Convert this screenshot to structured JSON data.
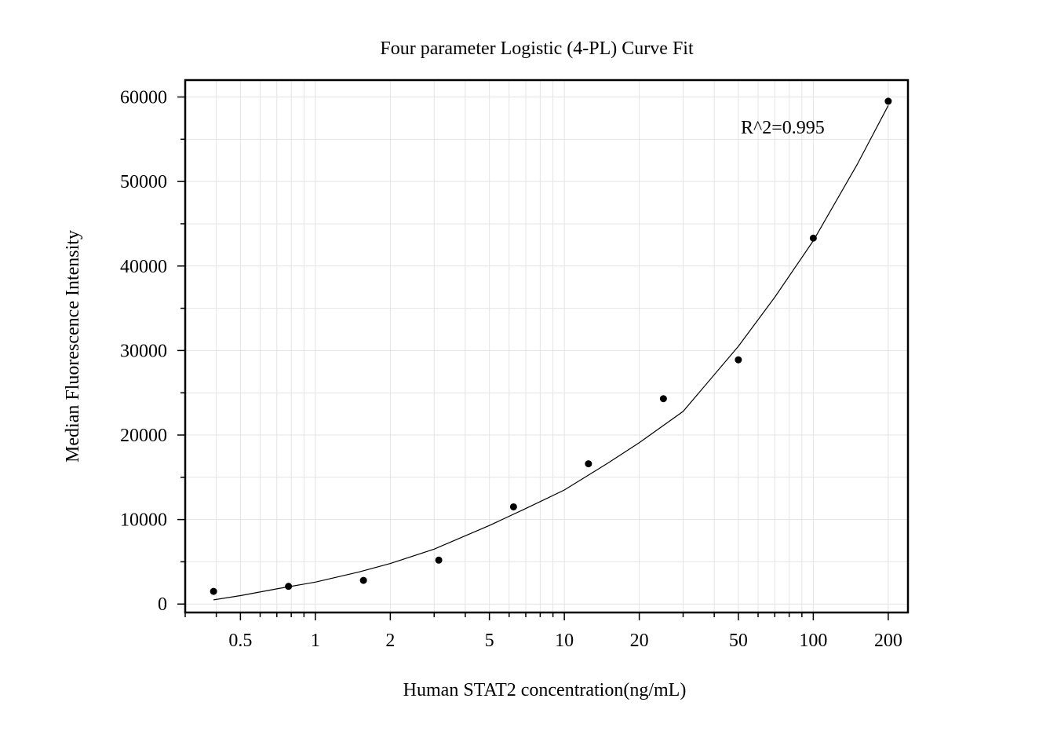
{
  "chart_data": {
    "type": "scatter",
    "title": "Four parameter Logistic (4-PL) Curve Fit",
    "xlabel": "Human STAT2 concentration(ng/mL)",
    "ylabel": "Median Fluorescence Intensity",
    "x_scale": "log",
    "xlim": [
      0.3,
      240
    ],
    "ylim": [
      -1000,
      62000
    ],
    "x_ticks": [
      0.5,
      1,
      2,
      5,
      10,
      20,
      50,
      100,
      200
    ],
    "x_tick_labels": [
      "0.5",
      "1",
      "2",
      "5",
      "10",
      "20",
      "50",
      "100",
      "200"
    ],
    "y_ticks": [
      0,
      10000,
      20000,
      30000,
      40000,
      50000,
      60000
    ],
    "y_tick_labels": [
      "0",
      "10000",
      "20000",
      "30000",
      "40000",
      "50000",
      "60000"
    ],
    "grid": true,
    "annotation": "R^2=0.995",
    "points": {
      "x": [
        0.39,
        0.78,
        1.56,
        3.13,
        6.25,
        12.5,
        25,
        50,
        100,
        200
      ],
      "y": [
        1500,
        2100,
        2800,
        5200,
        11500,
        16600,
        24300,
        28900,
        43300,
        59500
      ]
    },
    "fit": {
      "x": [
        0.39,
        0.5,
        0.7,
        1,
        1.5,
        2,
        3,
        5,
        7,
        10,
        15,
        20,
        30,
        50,
        70,
        100,
        150,
        200
      ],
      "y": [
        500,
        1000,
        1800,
        2600,
        3800,
        4800,
        6500,
        9300,
        11300,
        13500,
        16700,
        19100,
        22800,
        30500,
        36300,
        43000,
        52000,
        59000
      ]
    },
    "colors": {
      "points": "#000000",
      "fit_line": "#000000",
      "grid": "#e4e4e4",
      "axes": "#000000"
    }
  }
}
